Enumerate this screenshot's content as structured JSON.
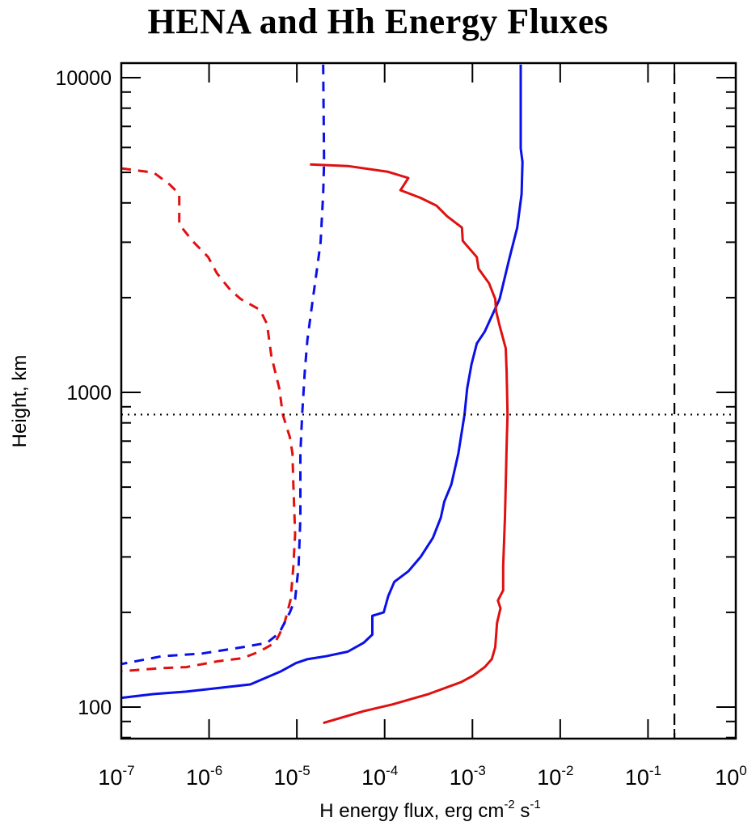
{
  "chart_data": {
    "type": "line",
    "title": "HENA and Hh Energy Fluxes",
    "xlabel": "H energy flux, erg cm-2 s-1",
    "xlabel_parts": {
      "main": "H energy flux, erg cm",
      "sup1": "-2",
      "mid": " s",
      "sup2": "-1"
    },
    "ylabel": "Height, km",
    "x_scale": "log",
    "y_scale": "log",
    "xlim": [
      1e-07,
      1
    ],
    "ylim": [
      79,
      11100
    ],
    "x_ticks": [
      {
        "base": "10",
        "exp": "-7",
        "value": -7
      },
      {
        "base": "10",
        "exp": "-6",
        "value": -6
      },
      {
        "base": "10",
        "exp": "-5",
        "value": -5
      },
      {
        "base": "10",
        "exp": "-4",
        "value": -4
      },
      {
        "base": "10",
        "exp": "-3",
        "value": -3
      },
      {
        "base": "10",
        "exp": "-2",
        "value": -2
      },
      {
        "base": "10",
        "exp": "-1",
        "value": -1
      },
      {
        "base": "10",
        "exp": "0",
        "value": 0
      }
    ],
    "y_ticks": [
      {
        "label": "100",
        "value": 100
      },
      {
        "label": "1000",
        "value": 1000
      },
      {
        "label": "10000",
        "value": 10000
      }
    ],
    "grid": false,
    "legend": null,
    "point_format": "[log10(flux), height_km]",
    "series": [
      {
        "name": "red-dashed",
        "color": "#e01010",
        "style": "dashed",
        "points": [
          [
            -7.0,
            5150
          ],
          [
            -6.63,
            4990
          ],
          [
            -6.45,
            4580
          ],
          [
            -6.34,
            4270
          ],
          [
            -6.34,
            3420
          ],
          [
            -6.19,
            3030
          ],
          [
            -6.01,
            2690
          ],
          [
            -5.91,
            2390
          ],
          [
            -5.76,
            2120
          ],
          [
            -5.64,
            1980
          ],
          [
            -5.42,
            1830
          ],
          [
            -5.34,
            1650
          ],
          [
            -5.29,
            1300
          ],
          [
            -5.2,
            1030
          ],
          [
            -5.16,
            850
          ],
          [
            -5.08,
            720
          ],
          [
            -5.05,
            640
          ],
          [
            -5.04,
            510
          ],
          [
            -5.02,
            355
          ],
          [
            -5.04,
            280
          ],
          [
            -5.07,
            220
          ],
          [
            -5.14,
            185
          ],
          [
            -5.2,
            170
          ],
          [
            -5.25,
            160
          ],
          [
            -5.43,
            150
          ],
          [
            -5.62,
            143
          ],
          [
            -5.89,
            140
          ],
          [
            -6.26,
            134
          ],
          [
            -6.54,
            133
          ],
          [
            -7.0,
            130
          ]
        ]
      },
      {
        "name": "blue-dashed",
        "color": "#0a10e8",
        "style": "dashed",
        "points": [
          [
            -4.7,
            11000
          ],
          [
            -4.69,
            5400
          ],
          [
            -4.7,
            4270
          ],
          [
            -4.73,
            3000
          ],
          [
            -4.77,
            2470
          ],
          [
            -4.83,
            1870
          ],
          [
            -4.88,
            1470
          ],
          [
            -4.91,
            1160
          ],
          [
            -4.94,
            850
          ],
          [
            -4.96,
            640
          ],
          [
            -4.96,
            400
          ],
          [
            -4.98,
            280
          ],
          [
            -5.02,
            220
          ],
          [
            -5.08,
            200
          ],
          [
            -5.2,
            172
          ],
          [
            -5.34,
            160
          ],
          [
            -5.62,
            155
          ],
          [
            -6.08,
            148
          ],
          [
            -6.54,
            145
          ],
          [
            -7.0,
            137
          ]
        ]
      },
      {
        "name": "blue-solid",
        "color": "#0a10e8",
        "style": "solid",
        "points": [
          [
            -2.45,
            11000
          ],
          [
            -2.45,
            5960
          ],
          [
            -2.43,
            5400
          ],
          [
            -2.44,
            4270
          ],
          [
            -2.49,
            3340
          ],
          [
            -2.58,
            2660
          ],
          [
            -2.69,
            1980
          ],
          [
            -2.86,
            1560
          ],
          [
            -2.95,
            1430
          ],
          [
            -3.01,
            1230
          ],
          [
            -3.06,
            1030
          ],
          [
            -3.09,
            850
          ],
          [
            -3.16,
            640
          ],
          [
            -3.24,
            510
          ],
          [
            -3.32,
            450
          ],
          [
            -3.36,
            400
          ],
          [
            -3.45,
            345
          ],
          [
            -3.59,
            300
          ],
          [
            -3.73,
            270
          ],
          [
            -3.89,
            250
          ],
          [
            -3.96,
            225
          ],
          [
            -4.01,
            200
          ],
          [
            -4.14,
            195
          ],
          [
            -4.14,
            170
          ],
          [
            -4.24,
            160
          ],
          [
            -4.42,
            150
          ],
          [
            -4.67,
            145
          ],
          [
            -4.88,
            142
          ],
          [
            -5.01,
            138
          ],
          [
            -5.18,
            130
          ],
          [
            -5.53,
            118
          ],
          [
            -5.89,
            115
          ],
          [
            -6.26,
            112
          ],
          [
            -6.63,
            110
          ],
          [
            -7.0,
            107
          ]
        ]
      },
      {
        "name": "red-solid",
        "color": "#e01010",
        "style": "solid",
        "points": [
          [
            -4.85,
            5300
          ],
          [
            -4.42,
            5240
          ],
          [
            -3.96,
            5020
          ],
          [
            -3.73,
            4800
          ],
          [
            -3.79,
            4520
          ],
          [
            -3.82,
            4390
          ],
          [
            -3.59,
            4150
          ],
          [
            -3.41,
            3920
          ],
          [
            -3.29,
            3630
          ],
          [
            -3.12,
            3340
          ],
          [
            -3.11,
            3030
          ],
          [
            -2.95,
            2690
          ],
          [
            -2.93,
            2470
          ],
          [
            -2.81,
            2220
          ],
          [
            -2.74,
            1980
          ],
          [
            -2.73,
            1810
          ],
          [
            -2.69,
            1630
          ],
          [
            -2.62,
            1380
          ],
          [
            -2.61,
            1160
          ],
          [
            -2.6,
            850
          ],
          [
            -2.61,
            680
          ],
          [
            -2.62,
            510
          ],
          [
            -2.63,
            400
          ],
          [
            -2.65,
            280
          ],
          [
            -2.65,
            235
          ],
          [
            -2.71,
            218
          ],
          [
            -2.68,
            206
          ],
          [
            -2.72,
            185
          ],
          [
            -2.74,
            155
          ],
          [
            -2.78,
            142
          ],
          [
            -2.86,
            134
          ],
          [
            -2.99,
            126
          ],
          [
            -3.13,
            120
          ],
          [
            -3.5,
            110
          ],
          [
            -3.91,
            102
          ],
          [
            -4.24,
            97
          ],
          [
            -4.7,
            89
          ]
        ]
      }
    ],
    "reference_lines": [
      {
        "name": "horizontal-dotted",
        "orientation": "horizontal",
        "value": 850,
        "color": "#000000",
        "style": "dotted"
      },
      {
        "name": "vertical-dashed",
        "orientation": "vertical",
        "value": 0.2,
        "color": "#000000",
        "style": "dashed"
      }
    ]
  }
}
